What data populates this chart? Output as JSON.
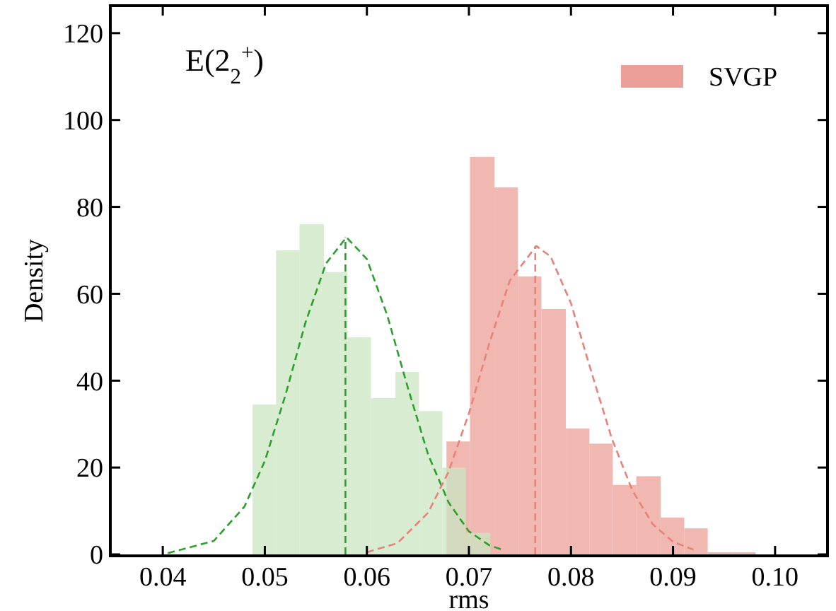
{
  "chart_data": {
    "type": "histogram",
    "title": "E(2$_{2}$$^{+}$)",
    "xlabel": "rms",
    "ylabel": "Density",
    "xlim": [
      0.035,
      0.105
    ],
    "ylim": [
      0,
      126
    ],
    "xticks": [
      {
        "value": 0.04,
        "label": "0.04"
      },
      {
        "value": 0.05,
        "label": "0.05"
      },
      {
        "value": 0.06,
        "label": "0.06"
      },
      {
        "value": 0.07,
        "label": "0.07"
      },
      {
        "value": 0.08,
        "label": "0.08"
      },
      {
        "value": 0.09,
        "label": "0.09"
      },
      {
        "value": 0.1,
        "label": "0.10"
      }
    ],
    "yticks": [
      0,
      20,
      40,
      60,
      80,
      100,
      120
    ],
    "grid": false,
    "legend": "top right",
    "series": [
      {
        "color": "#c9e5c1",
        "bins": [
          0.0488,
          0.0511,
          0.0534,
          0.0558,
          0.0581,
          0.0604,
          0.0628,
          0.0651,
          0.0674,
          0.0697,
          0.0721
        ],
        "values": [
          34.5,
          70,
          76,
          65,
          50,
          36,
          42,
          33,
          20,
          5
        ]
      },
      {
        "name": "SVGP",
        "color": "#eba097",
        "bins": [
          0.0678,
          0.0701,
          0.0725,
          0.0748,
          0.0771,
          0.0795,
          0.0818,
          0.0841,
          0.0864,
          0.0888,
          0.0911,
          0.0934,
          0.0958,
          0.0981
        ],
        "values": [
          26,
          91.5,
          84.5,
          64,
          56.5,
          29,
          25.5,
          16,
          18,
          8.5,
          6,
          0.5,
          0.5
        ]
      },
      {
        "type": "line",
        "color": "#2ca02c",
        "line_style": "dashed",
        "x": [
          0.0405,
          0.045,
          0.048,
          0.05,
          0.052,
          0.054,
          0.056,
          0.058,
          0.06,
          0.062,
          0.064,
          0.066,
          0.068,
          0.07,
          0.072,
          0.0735
        ],
        "values": [
          0.3,
          3.1,
          11,
          21.5,
          36.5,
          53.5,
          67,
          73,
          68,
          55,
          38.5,
          23,
          12,
          5.3,
          2.1,
          0.9
        ]
      },
      {
        "type": "line",
        "color": "#e8827a",
        "line_style": "dashed",
        "x": [
          0.06,
          0.063,
          0.066,
          0.068,
          0.07,
          0.072,
          0.074,
          0.0766,
          0.078,
          0.08,
          0.082,
          0.084,
          0.086,
          0.088,
          0.09,
          0.092
        ],
        "values": [
          0.5,
          2.6,
          9.6,
          19,
          32.5,
          48.6,
          63,
          71,
          68.6,
          57.8,
          42,
          26.7,
          14.8,
          7,
          2.9,
          1.1
        ]
      },
      {
        "type": "line",
        "color": "#2ca02c",
        "line_style": "dashed",
        "x": [
          0.0579,
          0.0579
        ],
        "values": [
          0,
          73
        ]
      },
      {
        "type": "line",
        "color": "#e8827a",
        "line_style": "dashed",
        "x": [
          0.0765,
          0.0765
        ],
        "values": [
          0,
          71
        ]
      }
    ]
  }
}
